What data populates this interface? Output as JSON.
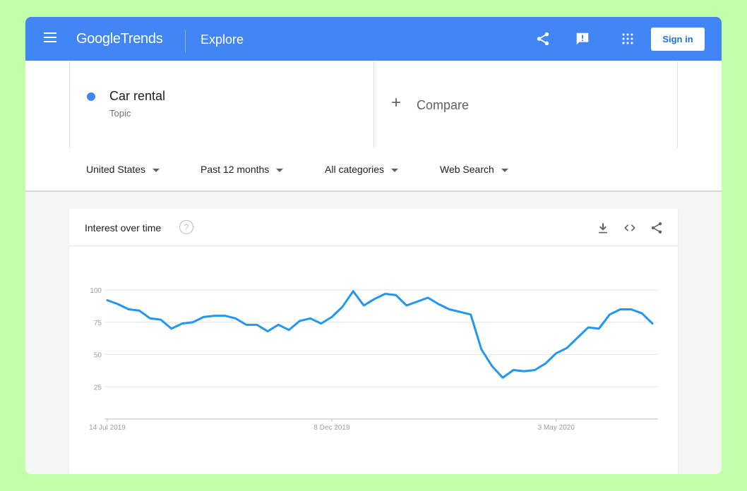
{
  "header": {
    "logo_google": "Google",
    "logo_trends": "Trends",
    "section": "Explore",
    "signin_label": "Sign in"
  },
  "search": {
    "term": "Car rental",
    "term_type": "Topic",
    "compare_plus": "+",
    "compare_label": "Compare"
  },
  "filters": [
    {
      "label": "United States"
    },
    {
      "label": "Past 12 months"
    },
    {
      "label": "All categories"
    },
    {
      "label": "Web Search"
    }
  ],
  "card": {
    "title": "Interest over time",
    "help": "?"
  },
  "colors": {
    "header": "#4285f4",
    "series": "#2196f3",
    "background": "#c1ffa8"
  },
  "chart_data": {
    "type": "line",
    "xlabel": "",
    "ylabel": "",
    "ylim": [
      0,
      100
    ],
    "y_ticks": [
      25,
      50,
      75,
      100
    ],
    "x_tick_labels": [
      {
        "index": 0,
        "label": "14 Jul 2019"
      },
      {
        "index": 21,
        "label": "8 Dec 2019"
      },
      {
        "index": 42,
        "label": "3 May 2020"
      }
    ],
    "series": [
      {
        "values": [
          92,
          89,
          85,
          84,
          78,
          77,
          70,
          74,
          75,
          79,
          80,
          80,
          78,
          73,
          73,
          68,
          73,
          69,
          76,
          78,
          74,
          79,
          87,
          99,
          88,
          93,
          97,
          96,
          88,
          91,
          94,
          89,
          85,
          83,
          81,
          54,
          41,
          32,
          38,
          37,
          38,
          43,
          51,
          55,
          63,
          71,
          70,
          81,
          85,
          85,
          82,
          74
        ]
      }
    ],
    "grid": true
  }
}
